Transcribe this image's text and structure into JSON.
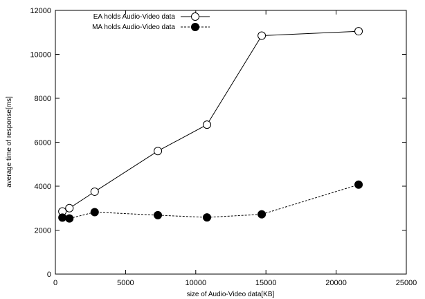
{
  "chart_data": {
    "type": "line",
    "xlabel": "size of Audio-Video data[KB]",
    "ylabel": "average time of response[ms]",
    "xlim": [
      0,
      25000
    ],
    "ylim": [
      0,
      12000
    ],
    "xticks": [
      0,
      5000,
      10000,
      15000,
      20000,
      25000
    ],
    "yticks": [
      0,
      2000,
      4000,
      6000,
      8000,
      10000,
      12000
    ],
    "grid": false,
    "legend_position": "top-left",
    "series": [
      {
        "name": "EA holds Audio-Video data",
        "marker": "open-circle",
        "line_style": "solid",
        "x": [
          500,
          1000,
          2800,
          7300,
          10800,
          14700,
          21600
        ],
        "y": [
          2850,
          3000,
          3750,
          5600,
          6800,
          10850,
          11050
        ]
      },
      {
        "name": "MA holds Audio-Video data",
        "marker": "filled-circle",
        "line_style": "dashed",
        "x": [
          500,
          1000,
          2800,
          7300,
          10800,
          14700,
          21600
        ],
        "y": [
          2570,
          2530,
          2820,
          2680,
          2580,
          2720,
          4070
        ]
      }
    ]
  }
}
